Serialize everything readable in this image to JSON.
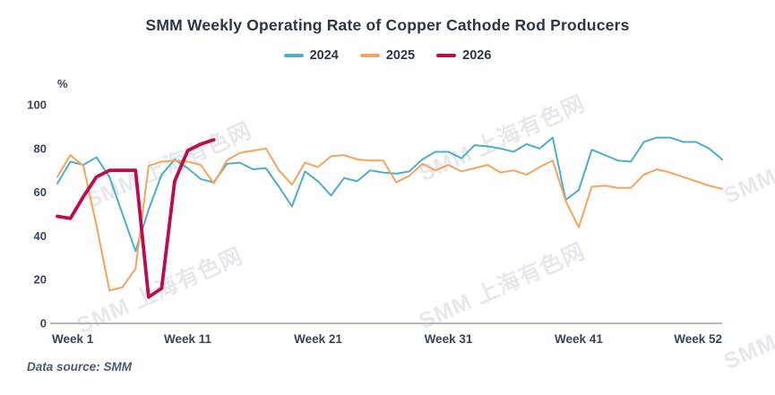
{
  "title": "SMM Weekly Operating Rate of Copper Cathode Rod Producers",
  "legend": {
    "items": [
      {
        "label": "2024",
        "color": "#4bafcb"
      },
      {
        "label": "2025",
        "color": "#f6a35d"
      },
      {
        "label": "2026",
        "color": "#be0b4f"
      }
    ]
  },
  "footer": {
    "text": "Data source:  SMM"
  },
  "watermark_text": "SMM 上海有色网",
  "colors": {
    "axis_line": "#9aa3b1",
    "axis_text": "#39445a",
    "title_text": "#2b3648"
  },
  "chart_data": {
    "type": "line",
    "title": "SMM Weekly Operating Rate of Copper Cathode Rod Producers",
    "xlabel": "Week",
    "ylabel": "%",
    "ylim": [
      0,
      100
    ],
    "y_ticks": [
      0,
      20,
      40,
      60,
      80,
      100
    ],
    "y_unit": "%",
    "x_range_weeks": [
      1,
      52
    ],
    "x_tick_labels": [
      {
        "week": 1,
        "label": "Week 1"
      },
      {
        "week": 11,
        "label": "Week 11"
      },
      {
        "week": 21,
        "label": "Week 21"
      },
      {
        "week": 31,
        "label": "Week 31"
      },
      {
        "week": 41,
        "label": "Week 41"
      },
      {
        "week": 52,
        "label": "Week 52"
      }
    ],
    "grid": false,
    "legend_position": "top",
    "series": [
      {
        "name": "2024",
        "color": "#4bafcb",
        "start_week": 1,
        "values": [
          64,
          74,
          72.5,
          76,
          67,
          50,
          33,
          52,
          68,
          75,
          71,
          66,
          64.5,
          73,
          73.5,
          70.5,
          71,
          62.5,
          53.5,
          69.5,
          65,
          58.5,
          66.5,
          65,
          70,
          69,
          68.5,
          69.5,
          75,
          78.5,
          78.5,
          75.5,
          81.5,
          81,
          80,
          78.5,
          82,
          80,
          85,
          56.5,
          61,
          79.5,
          77,
          74.5,
          74,
          83,
          85,
          85,
          83,
          83,
          80,
          75
        ]
      },
      {
        "name": "2025",
        "color": "#f6a35d",
        "start_week": 1,
        "values": [
          67,
          77,
          72,
          45,
          15,
          16.5,
          25,
          72,
          74,
          74.5,
          74,
          72.5,
          64,
          74.5,
          78,
          79,
          80,
          70,
          63.5,
          73.5,
          71.5,
          76.5,
          77,
          75,
          74.5,
          74.5,
          64.5,
          67.5,
          73,
          70,
          72.5,
          69.5,
          71,
          72.5,
          69,
          70,
          68,
          71.5,
          74.5,
          56,
          44,
          62.5,
          63,
          62,
          62,
          68,
          70.5,
          69,
          67,
          65,
          63,
          61.5
        ]
      },
      {
        "name": "2026",
        "color": "#be0b4f",
        "start_week": 1,
        "values": [
          49,
          48,
          58,
          67,
          70,
          70,
          70,
          12,
          16,
          65,
          79,
          82,
          84
        ]
      }
    ]
  }
}
